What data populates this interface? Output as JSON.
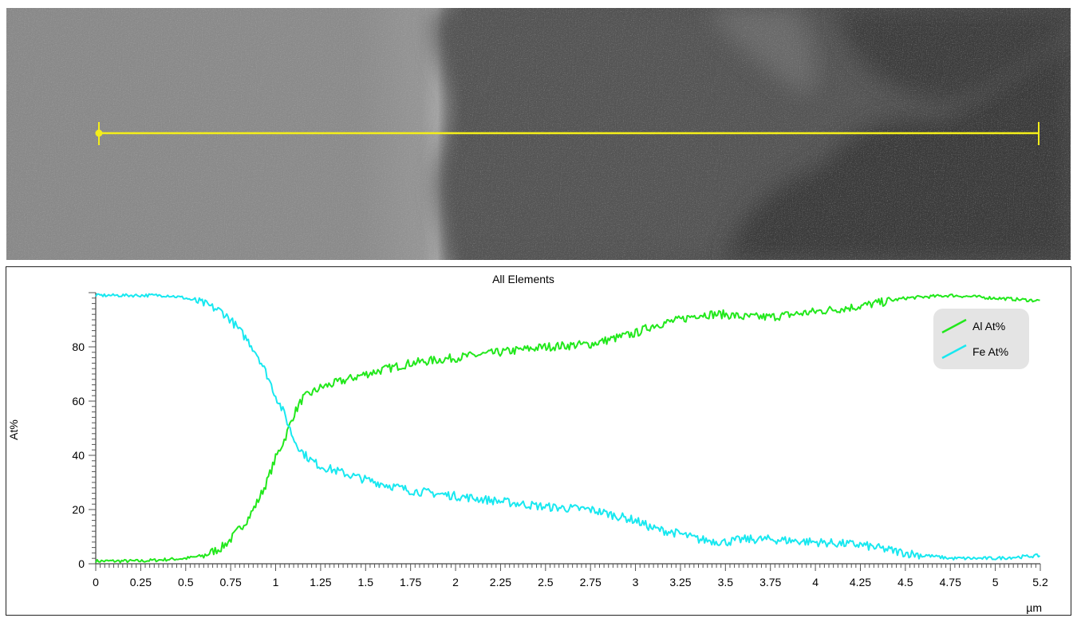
{
  "chart_data": {
    "type": "line",
    "title": "All Elements",
    "ylabel": "At%",
    "xunit": "µm",
    "xlim": [
      0,
      5.25
    ],
    "ylim": [
      0,
      100
    ],
    "x_ticks": [
      "0",
      "0.25",
      "0.5",
      "0.75",
      "1",
      "1.25",
      "1.5",
      "1.75",
      "2",
      "2.25",
      "2.5",
      "2.75",
      "3",
      "3.25",
      "3.5",
      "3.75",
      "4",
      "4.25",
      "4.5",
      "4.75",
      "5",
      "5.2"
    ],
    "y_ticks": [
      "0",
      "20",
      "40",
      "60",
      "80"
    ],
    "legend_position": "top-right",
    "series": [
      {
        "name": "Al At%",
        "color": "#22e81c",
        "x": [
          0,
          0.25,
          0.5,
          0.6,
          0.7,
          0.75,
          0.8,
          0.85,
          0.9,
          0.95,
          1.0,
          1.05,
          1.1,
          1.15,
          1.2,
          1.25,
          1.35,
          1.5,
          1.75,
          2.0,
          2.25,
          2.5,
          2.75,
          3.0,
          3.1,
          3.25,
          3.35,
          3.5,
          3.6,
          3.75,
          4.0,
          4.25,
          4.5,
          4.75,
          5.0,
          5.25
        ],
        "y": [
          1,
          1,
          2,
          3,
          6,
          9,
          13,
          17,
          23,
          30,
          39,
          46,
          55,
          61,
          63,
          65,
          67,
          70,
          74,
          76,
          78,
          80,
          81,
          85,
          88,
          90,
          92,
          92,
          91,
          91,
          93,
          95,
          98,
          99,
          98,
          97
        ]
      },
      {
        "name": "Fe At%",
        "color": "#18e8f0",
        "x": [
          0,
          0.25,
          0.4,
          0.5,
          0.6,
          0.7,
          0.75,
          0.8,
          0.85,
          0.9,
          0.95,
          1.0,
          1.05,
          1.1,
          1.15,
          1.2,
          1.25,
          1.35,
          1.5,
          1.75,
          2.0,
          2.25,
          2.5,
          2.75,
          3.0,
          3.1,
          3.25,
          3.35,
          3.5,
          3.6,
          3.75,
          4.0,
          4.25,
          4.5,
          4.75,
          5.0,
          5.25
        ],
        "y": [
          99,
          99,
          99,
          98,
          96,
          93,
          90,
          86,
          82,
          77,
          70,
          62,
          55,
          46,
          41,
          38,
          36,
          34,
          31,
          27,
          25,
          23,
          21,
          20,
          16,
          13,
          11,
          9,
          8,
          9,
          9,
          8,
          7,
          4,
          2,
          2,
          3
        ]
      }
    ]
  },
  "micrograph": {
    "line_color": "#f4ee1a"
  }
}
